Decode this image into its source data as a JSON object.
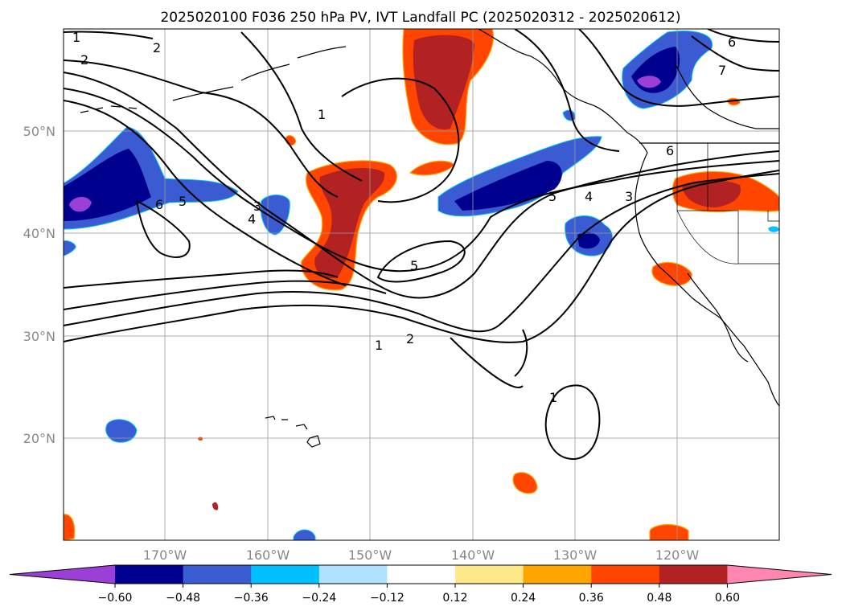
{
  "title": "2025020100 F036 250 hPa PV, IVT Landfall PC (2025020312 - 2025020612)",
  "lat_labels": [
    "50°N",
    "40°N",
    "30°N",
    "20°N"
  ],
  "lon_labels": [
    "170°W",
    "160°W",
    "150°W",
    "140°W",
    "130°W",
    "120°W"
  ],
  "colorbar": {
    "ticks": [
      "−0.60",
      "−0.48",
      "−0.36",
      "−0.24",
      "−0.12",
      "0.12",
      "0.24",
      "0.36",
      "0.48",
      "0.60"
    ],
    "colors": [
      "#9c3fd6",
      "#00008f",
      "#3a5bd1",
      "#00bfff",
      "#b0e2ff",
      "#ffffff",
      "#fde98a",
      "#ffa500",
      "#ff4500",
      "#b22222",
      "#ff86b0"
    ]
  },
  "contour_labels": [
    "1",
    "2",
    "2",
    "1",
    "6",
    "7",
    "6",
    "5",
    "4",
    "3",
    "6",
    "5",
    "3",
    "4",
    "5",
    "1",
    "2",
    "1"
  ],
  "map_extent": {
    "lon": [
      -180,
      -110
    ],
    "lat": [
      10,
      60
    ]
  }
}
